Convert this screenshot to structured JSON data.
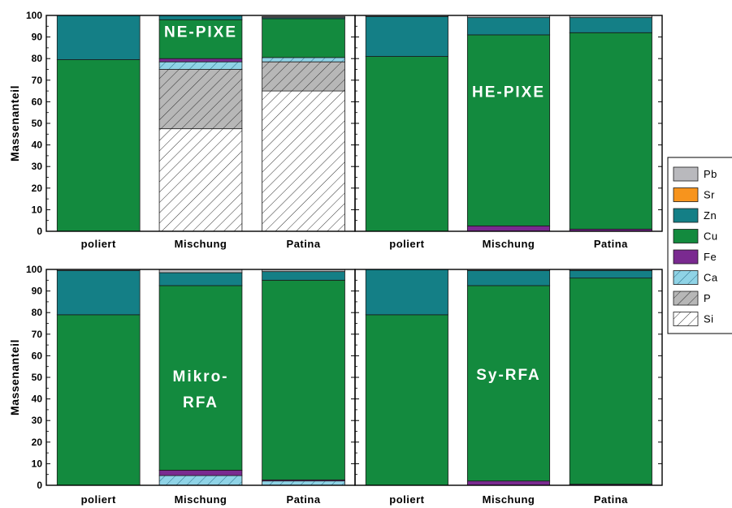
{
  "chart_data": {
    "type": "bar",
    "stacked": true,
    "ylabel": "Massenanteil",
    "ylim": [
      0,
      100
    ],
    "yticks": [
      0,
      10,
      20,
      30,
      40,
      50,
      60,
      70,
      80,
      90,
      100
    ],
    "categories": [
      "poliert",
      "Mischung",
      "Patina"
    ],
    "legend": {
      "placement": "right",
      "order": [
        "Pb",
        "Sr",
        "Zn",
        "Cu",
        "Fe",
        "Ca",
        "P",
        "Si"
      ]
    },
    "components": {
      "Si": {
        "color": "#ffffff",
        "pattern": "hatch"
      },
      "P": {
        "color": "#b7b7b7",
        "pattern": "hatch"
      },
      "Ca": {
        "color": "#8fd3e6",
        "pattern": "hatch"
      },
      "Fe": {
        "color": "#7a2a90",
        "pattern": "none"
      },
      "Cu": {
        "color": "#138a3e",
        "pattern": "none"
      },
      "Zn": {
        "color": "#147f86",
        "pattern": "none"
      },
      "Sr": {
        "color": "#f7941d",
        "pattern": "none"
      },
      "Pb": {
        "color": "#b9b9bd",
        "pattern": "none"
      }
    },
    "panels": [
      {
        "title": "NE-PIXE",
        "bars": [
          {
            "category": "poliert",
            "segments": [
              {
                "c": "Cu",
                "v": 79.5
              },
              {
                "c": "Zn",
                "v": 20.5
              }
            ]
          },
          {
            "category": "Mischung",
            "segments": [
              {
                "c": "Si",
                "v": 47.5
              },
              {
                "c": "P",
                "v": 27.5
              },
              {
                "c": "Ca",
                "v": 3.5
              },
              {
                "c": "Fe",
                "v": 1.5
              },
              {
                "c": "Cu",
                "v": 18.0
              },
              {
                "c": "Zn",
                "v": 2.0
              }
            ]
          },
          {
            "category": "Patina",
            "segments": [
              {
                "c": "Si",
                "v": 65.0
              },
              {
                "c": "P",
                "v": 13.5
              },
              {
                "c": "Ca",
                "v": 2.0
              },
              {
                "c": "Cu",
                "v": 18.0
              },
              {
                "c": "Zn",
                "v": 0.5
              },
              {
                "c": "Pb",
                "v": 0.5
              }
            ]
          }
        ]
      },
      {
        "title": "HE-PIXE",
        "bars": [
          {
            "category": "poliert",
            "segments": [
              {
                "c": "Cu",
                "v": 81.0
              },
              {
                "c": "Zn",
                "v": 18.5
              },
              {
                "c": "Pb",
                "v": 0.5
              }
            ]
          },
          {
            "category": "Mischung",
            "segments": [
              {
                "c": "Fe",
                "v": 2.5
              },
              {
                "c": "Cu",
                "v": 88.5
              },
              {
                "c": "Zn",
                "v": 8.0
              },
              {
                "c": "Pb",
                "v": 1.0
              }
            ]
          },
          {
            "category": "Patina",
            "segments": [
              {
                "c": "Fe",
                "v": 1.0
              },
              {
                "c": "Cu",
                "v": 91.0
              },
              {
                "c": "Zn",
                "v": 7.0
              },
              {
                "c": "Pb",
                "v": 1.0
              }
            ]
          }
        ]
      },
      {
        "title": "Mikro-\nRFA",
        "bars": [
          {
            "category": "poliert",
            "segments": [
              {
                "c": "Cu",
                "v": 79.0
              },
              {
                "c": "Zn",
                "v": 20.5
              },
              {
                "c": "Pb",
                "v": 0.5
              }
            ]
          },
          {
            "category": "Mischung",
            "segments": [
              {
                "c": "Ca",
                "v": 4.5
              },
              {
                "c": "Fe",
                "v": 2.5
              },
              {
                "c": "Cu",
                "v": 85.5
              },
              {
                "c": "Zn",
                "v": 6.0
              },
              {
                "c": "Pb",
                "v": 1.5
              }
            ]
          },
          {
            "category": "Patina",
            "segments": [
              {
                "c": "Ca",
                "v": 2.0
              },
              {
                "c": "Fe",
                "v": 0.5
              },
              {
                "c": "Cu",
                "v": 92.5
              },
              {
                "c": "Zn",
                "v": 4.0
              },
              {
                "c": "Pb",
                "v": 1.0
              }
            ]
          }
        ]
      },
      {
        "title": "Sy-RFA",
        "bars": [
          {
            "category": "poliert",
            "segments": [
              {
                "c": "Cu",
                "v": 79.0
              },
              {
                "c": "Zn",
                "v": 21.0
              }
            ]
          },
          {
            "category": "Mischung",
            "segments": [
              {
                "c": "Fe",
                "v": 2.0
              },
              {
                "c": "Cu",
                "v": 90.5
              },
              {
                "c": "Zn",
                "v": 7.0
              },
              {
                "c": "Pb",
                "v": 0.5
              }
            ]
          },
          {
            "category": "Patina",
            "segments": [
              {
                "c": "Fe",
                "v": 0.5
              },
              {
                "c": "Cu",
                "v": 95.5
              },
              {
                "c": "Zn",
                "v": 3.5
              },
              {
                "c": "Pb",
                "v": 0.5
              }
            ]
          }
        ]
      }
    ]
  }
}
